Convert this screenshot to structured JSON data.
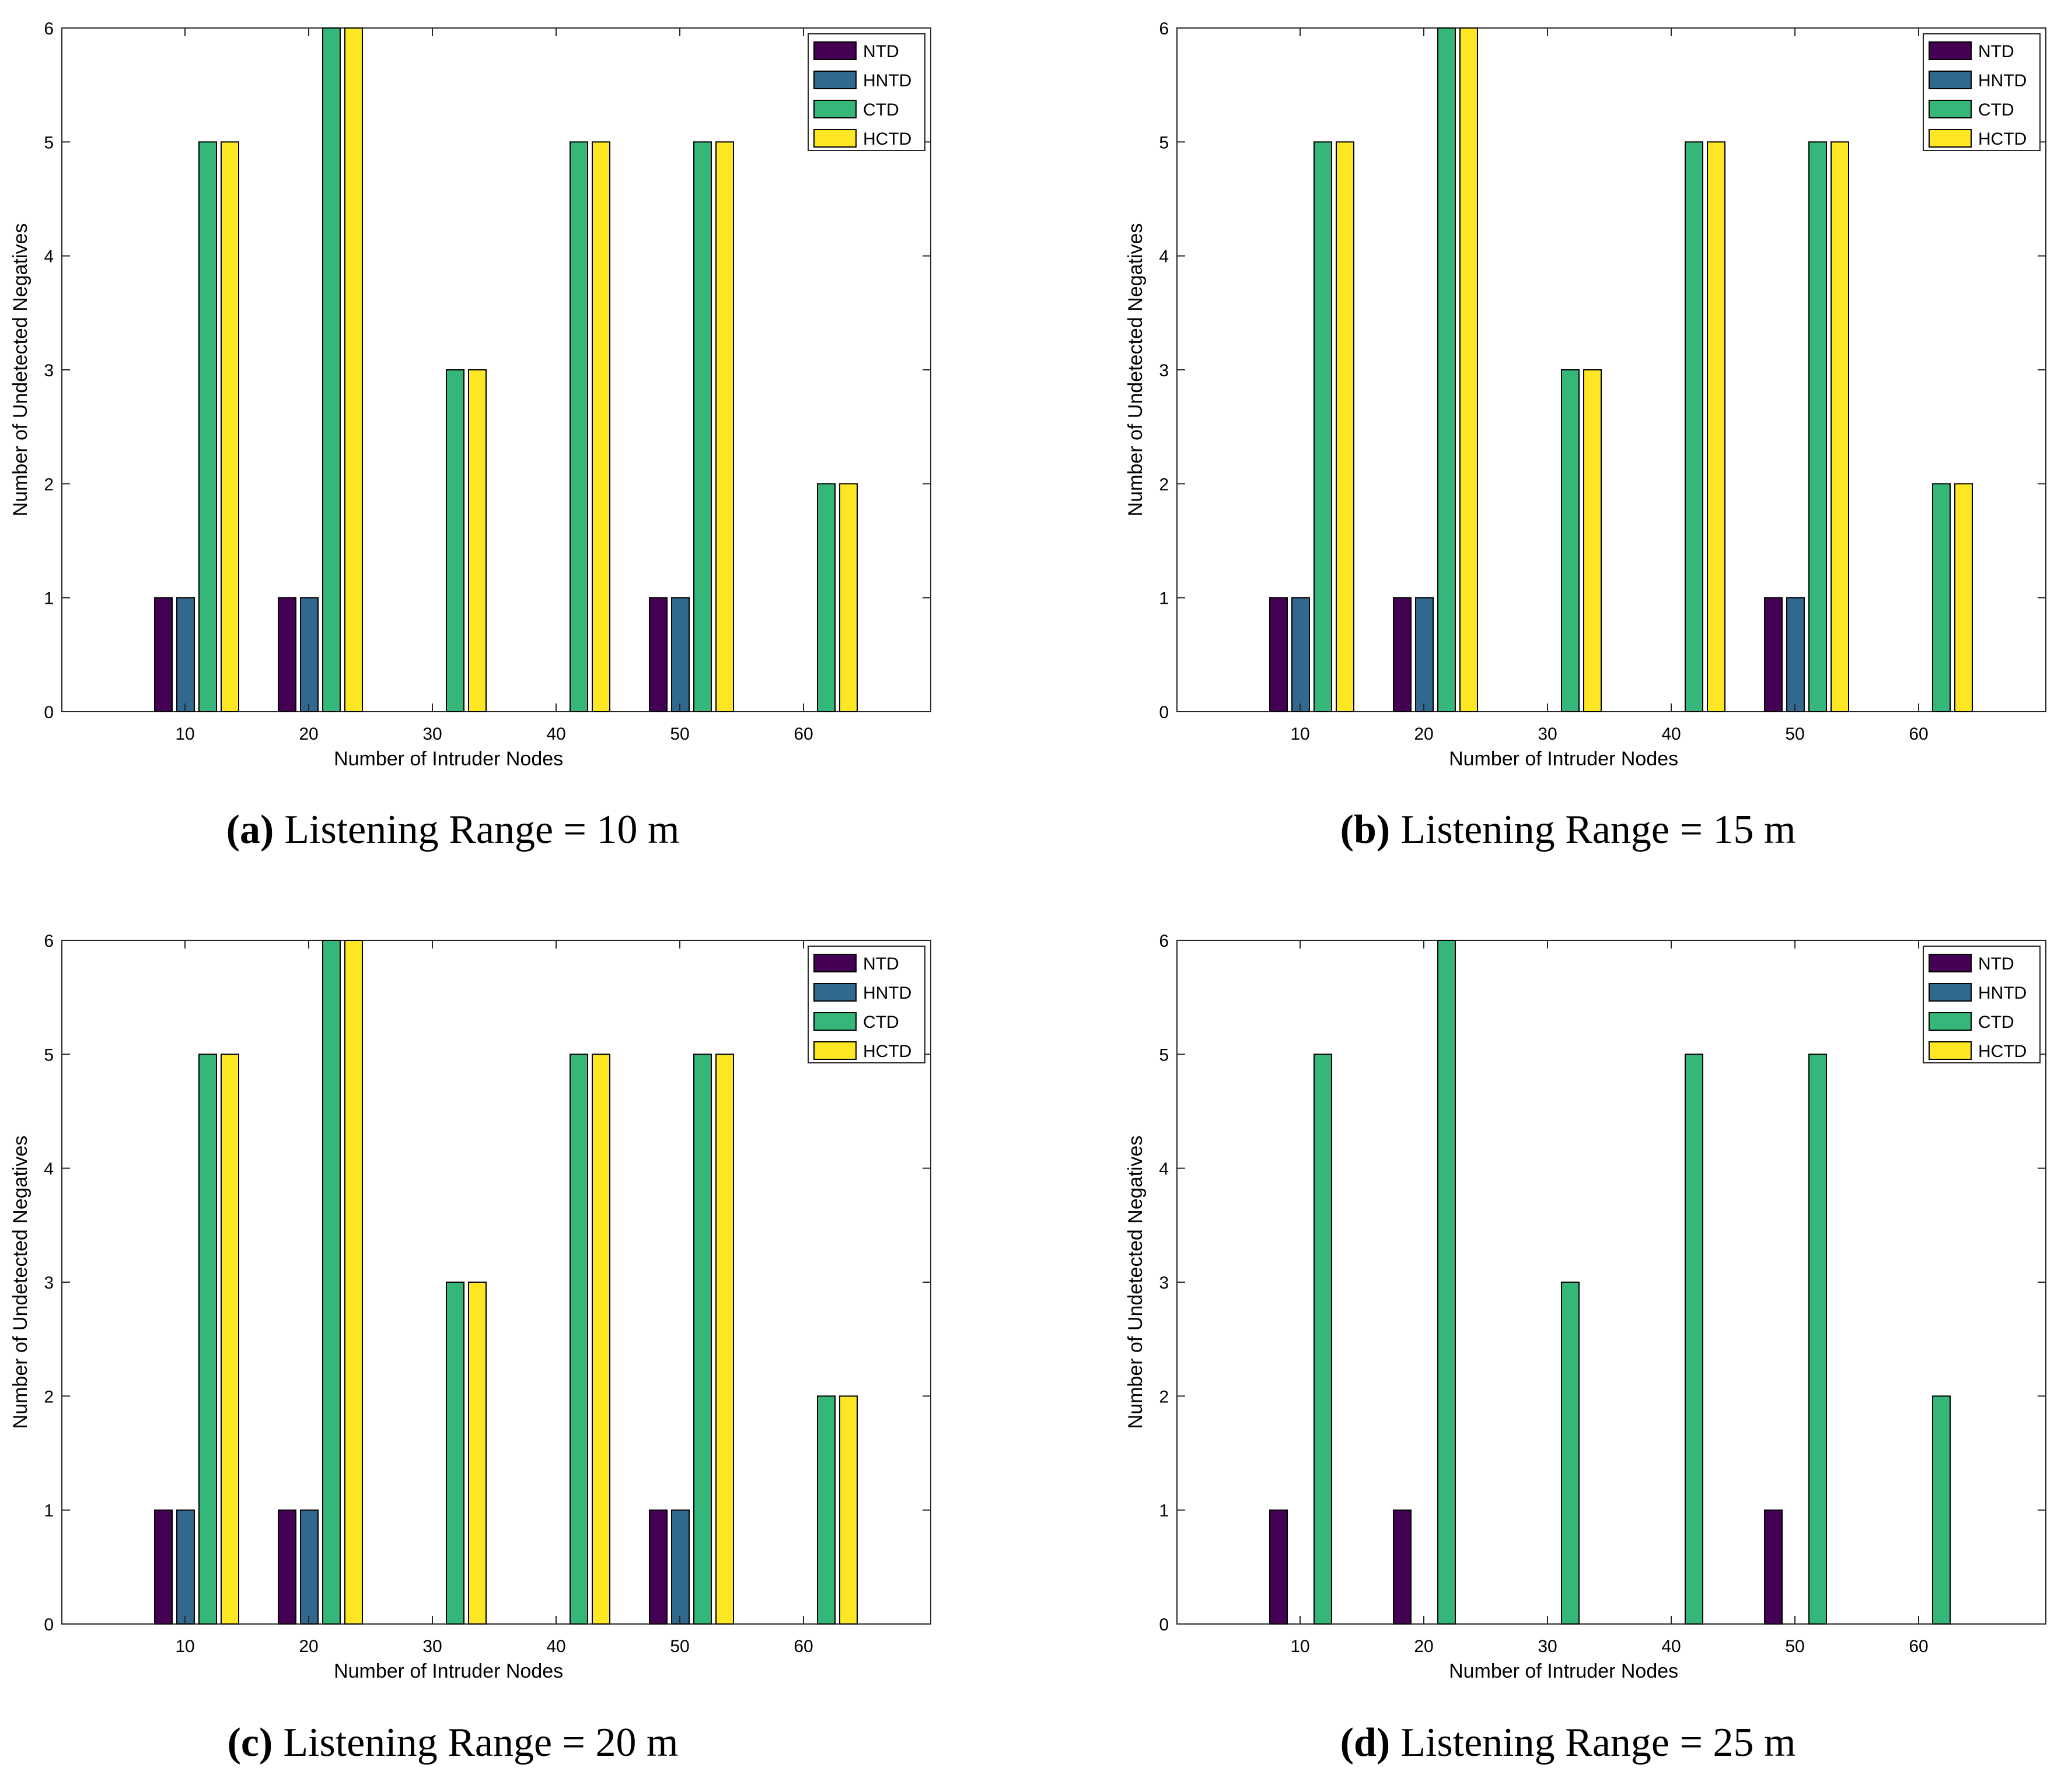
{
  "colors": {
    "NTD": "#440154",
    "HNTD": "#31688e",
    "CTD": "#35b779",
    "HCTD": "#fde725"
  },
  "legend_labels": [
    "NTD",
    "HNTD",
    "CTD",
    "HCTD"
  ],
  "chart_data": [
    {
      "type": "bar",
      "label": "(a)",
      "caption": "Listening Range = 10 m",
      "xlabel": "Number of Intruder Nodes",
      "ylabel": "Number of Undetected Negatives",
      "categories": [
        "10",
        "20",
        "30",
        "40",
        "50",
        "60"
      ],
      "ylim": [
        0,
        6
      ],
      "yticks": [
        "0",
        "1",
        "2",
        "3",
        "4",
        "5",
        "6"
      ],
      "legend_position": "top-right",
      "series": [
        {
          "name": "NTD",
          "values": [
            1,
            1,
            0,
            0,
            1,
            0
          ]
        },
        {
          "name": "HNTD",
          "values": [
            1,
            1,
            0,
            0,
            1,
            0
          ]
        },
        {
          "name": "CTD",
          "values": [
            5,
            6,
            3,
            5,
            5,
            2
          ]
        },
        {
          "name": "HCTD",
          "values": [
            5,
            6,
            3,
            5,
            5,
            2
          ]
        }
      ]
    },
    {
      "type": "bar",
      "label": "(b)",
      "caption": "Listening Range = 15 m",
      "xlabel": "Number of Intruder Nodes",
      "ylabel": "Number of Undetected Negatives",
      "categories": [
        "10",
        "20",
        "30",
        "40",
        "50",
        "60"
      ],
      "ylim": [
        0,
        6
      ],
      "yticks": [
        "0",
        "1",
        "2",
        "3",
        "4",
        "5",
        "6"
      ],
      "legend_position": "top-right",
      "series": [
        {
          "name": "NTD",
          "values": [
            1,
            1,
            0,
            0,
            1,
            0
          ]
        },
        {
          "name": "HNTD",
          "values": [
            1,
            1,
            0,
            0,
            1,
            0
          ]
        },
        {
          "name": "CTD",
          "values": [
            5,
            6,
            3,
            5,
            5,
            2
          ]
        },
        {
          "name": "HCTD",
          "values": [
            5,
            6,
            3,
            5,
            5,
            2
          ]
        }
      ]
    },
    {
      "type": "bar",
      "label": "(c)",
      "caption": "Listening Range = 20 m",
      "xlabel": "Number of Intruder Nodes",
      "ylabel": "Number of Undetected Negatives",
      "categories": [
        "10",
        "20",
        "30",
        "40",
        "50",
        "60"
      ],
      "ylim": [
        0,
        6
      ],
      "yticks": [
        "0",
        "1",
        "2",
        "3",
        "4",
        "5",
        "6"
      ],
      "legend_position": "top-right",
      "series": [
        {
          "name": "NTD",
          "values": [
            1,
            1,
            0,
            0,
            1,
            0
          ]
        },
        {
          "name": "HNTD",
          "values": [
            1,
            1,
            0,
            0,
            1,
            0
          ]
        },
        {
          "name": "CTD",
          "values": [
            5,
            6,
            3,
            5,
            5,
            2
          ]
        },
        {
          "name": "HCTD",
          "values": [
            5,
            6,
            3,
            5,
            5,
            2
          ]
        }
      ]
    },
    {
      "type": "bar",
      "label": "(d)",
      "caption": "Listening Range = 25 m",
      "xlabel": "Number of Intruder Nodes",
      "ylabel": "Number of Undetected Negatives",
      "categories": [
        "10",
        "20",
        "30",
        "40",
        "50",
        "60"
      ],
      "ylim": [
        0,
        6
      ],
      "yticks": [
        "0",
        "1",
        "2",
        "3",
        "4",
        "5",
        "6"
      ],
      "legend_position": "top-right",
      "series": [
        {
          "name": "NTD",
          "values": [
            1,
            1,
            0,
            0,
            1,
            0
          ]
        },
        {
          "name": "HNTD",
          "values": [
            0,
            0,
            0,
            0,
            0,
            0
          ]
        },
        {
          "name": "CTD",
          "values": [
            5,
            6,
            3,
            5,
            5,
            2
          ]
        },
        {
          "name": "HCTD",
          "values": [
            0,
            0,
            0,
            0,
            0,
            0
          ]
        }
      ]
    }
  ]
}
